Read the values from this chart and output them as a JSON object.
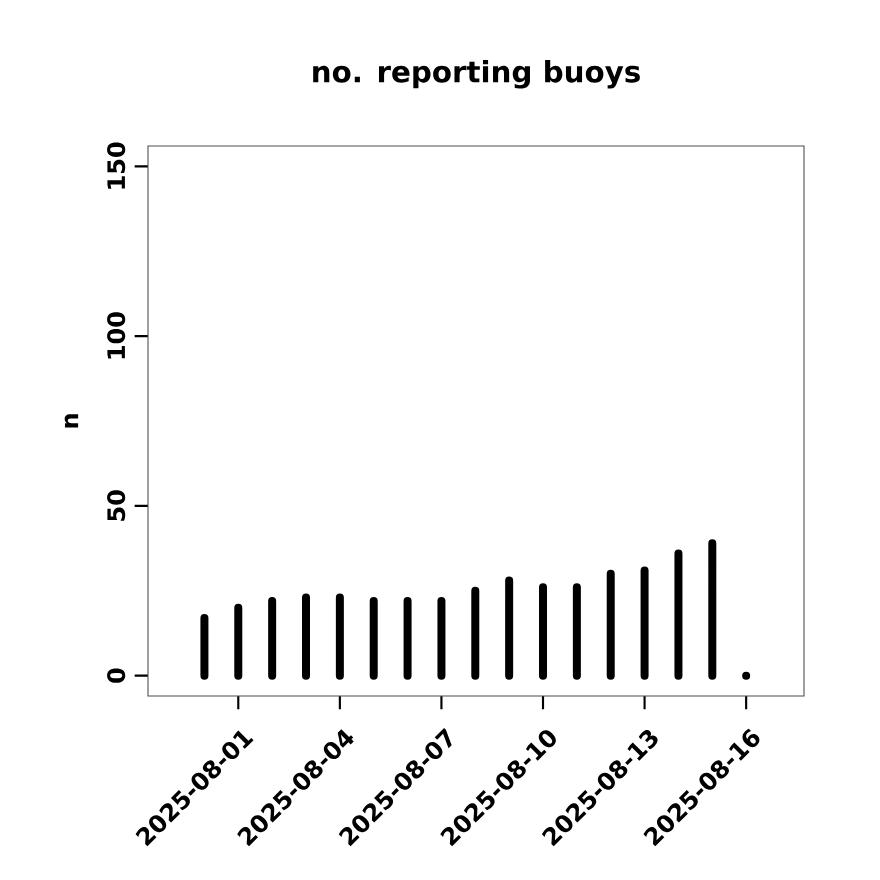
{
  "chart_data": {
    "type": "bar",
    "title": "no. reporting buoys",
    "ylabel": "n",
    "x": [
      "2025-07-31",
      "2025-08-01",
      "2025-08-02",
      "2025-08-03",
      "2025-08-04",
      "2025-08-05",
      "2025-08-06",
      "2025-08-07",
      "2025-08-08",
      "2025-08-09",
      "2025-08-10",
      "2025-08-11",
      "2025-08-12",
      "2025-08-13",
      "2025-08-14",
      "2025-08-15",
      "2025-08-16"
    ],
    "values": [
      17,
      20,
      22,
      23,
      23,
      22,
      22,
      22,
      25,
      28,
      26,
      26,
      30,
      31,
      36,
      39,
      0
    ],
    "color": "#000000",
    "xlim": [
      "2025-07-29T08:00",
      "2025-08-17T17:00"
    ],
    "xticks": [
      "2025-08-01",
      "2025-08-04",
      "2025-08-07",
      "2025-08-10",
      "2025-08-13",
      "2025-08-16"
    ],
    "ylim": [
      -6,
      156
    ],
    "yticks": [
      0,
      50,
      100,
      150
    ],
    "grid": false
  }
}
